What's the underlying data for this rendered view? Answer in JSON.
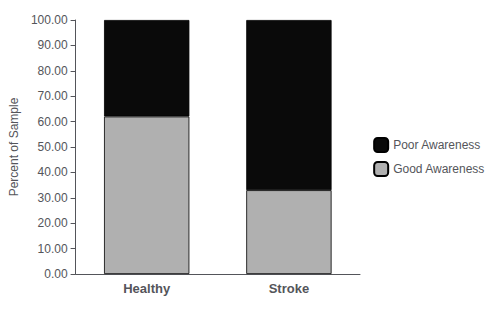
{
  "chart_data": {
    "type": "bar",
    "categories": [
      "Healthy",
      "Stroke"
    ],
    "series": [
      {
        "name": "Good Awareness",
        "color": "#b0b0b0",
        "values": [
          62.0,
          33.0
        ]
      },
      {
        "name": "Poor Awareness",
        "color": "#0a0a0a",
        "values": [
          38.0,
          67.0
        ]
      }
    ],
    "stacked": true,
    "ylabel": "Percent of Sample",
    "ylim": [
      0,
      100
    ],
    "yticks": [
      {
        "value": 0,
        "label": "0.00"
      },
      {
        "value": 10,
        "label": "10.00"
      },
      {
        "value": 20,
        "label": "20.00"
      },
      {
        "value": 30,
        "label": "30.00"
      },
      {
        "value": 40,
        "label": "40.00"
      },
      {
        "value": 50,
        "label": "50.00"
      },
      {
        "value": 60,
        "label": "60.00"
      },
      {
        "value": 70,
        "label": "70.00"
      },
      {
        "value": 80,
        "label": "80.00"
      },
      {
        "value": 90,
        "label": "90.00"
      },
      {
        "value": 100,
        "label": "100.00"
      }
    ],
    "grid": false,
    "legend": "right"
  }
}
